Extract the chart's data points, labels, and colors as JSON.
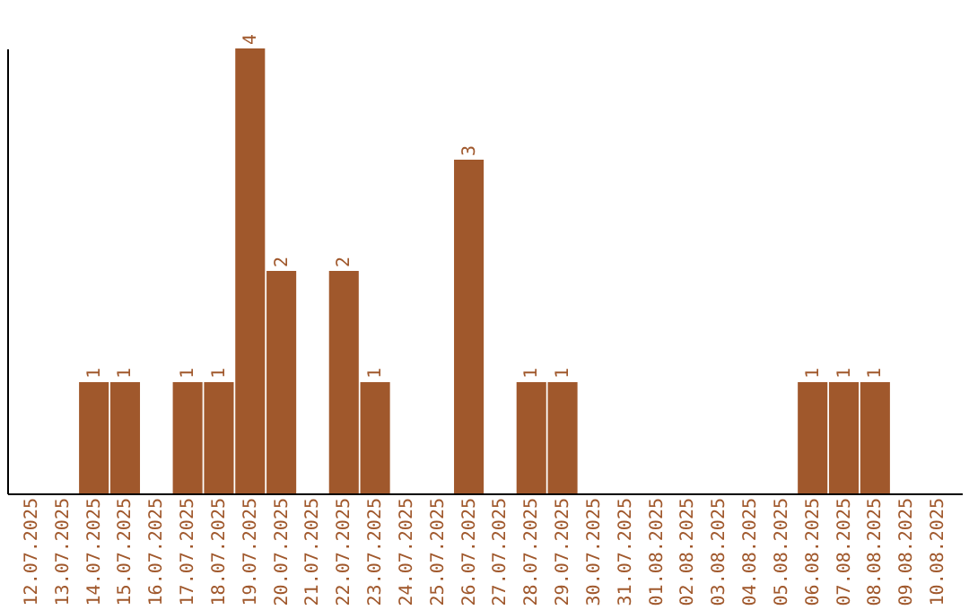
{
  "chart_data": {
    "type": "bar",
    "categories": [
      "12.07.2025",
      "13.07.2025",
      "14.07.2025",
      "15.07.2025",
      "16.07.2025",
      "17.07.2025",
      "18.07.2025",
      "19.07.2025",
      "20.07.2025",
      "21.07.2025",
      "22.07.2025",
      "23.07.2025",
      "24.07.2025",
      "25.07.2025",
      "26.07.2025",
      "27.07.2025",
      "28.07.2025",
      "29.07.2025",
      "30.07.2025",
      "31.07.2025",
      "01.08.2025",
      "02.08.2025",
      "03.08.2025",
      "04.08.2025",
      "05.08.2025",
      "06.08.2025",
      "07.08.2025",
      "08.08.2025",
      "09.08.2025",
      "10.08.2025"
    ],
    "values": [
      0,
      0,
      1,
      1,
      0,
      1,
      1,
      4,
      2,
      0,
      2,
      1,
      0,
      0,
      3,
      0,
      1,
      1,
      0,
      0,
      0,
      0,
      0,
      0,
      0,
      1,
      1,
      1,
      0,
      0
    ],
    "value_labels": [
      null,
      null,
      "1",
      "1",
      null,
      "1",
      "1",
      "4",
      "2",
      null,
      "2",
      "1",
      null,
      null,
      "3",
      null,
      "1",
      "1",
      null,
      null,
      null,
      null,
      null,
      null,
      null,
      "1",
      "1",
      "1",
      null,
      null
    ],
    "color": "#a0582c",
    "tick_labels": "x",
    "grid": false
  }
}
